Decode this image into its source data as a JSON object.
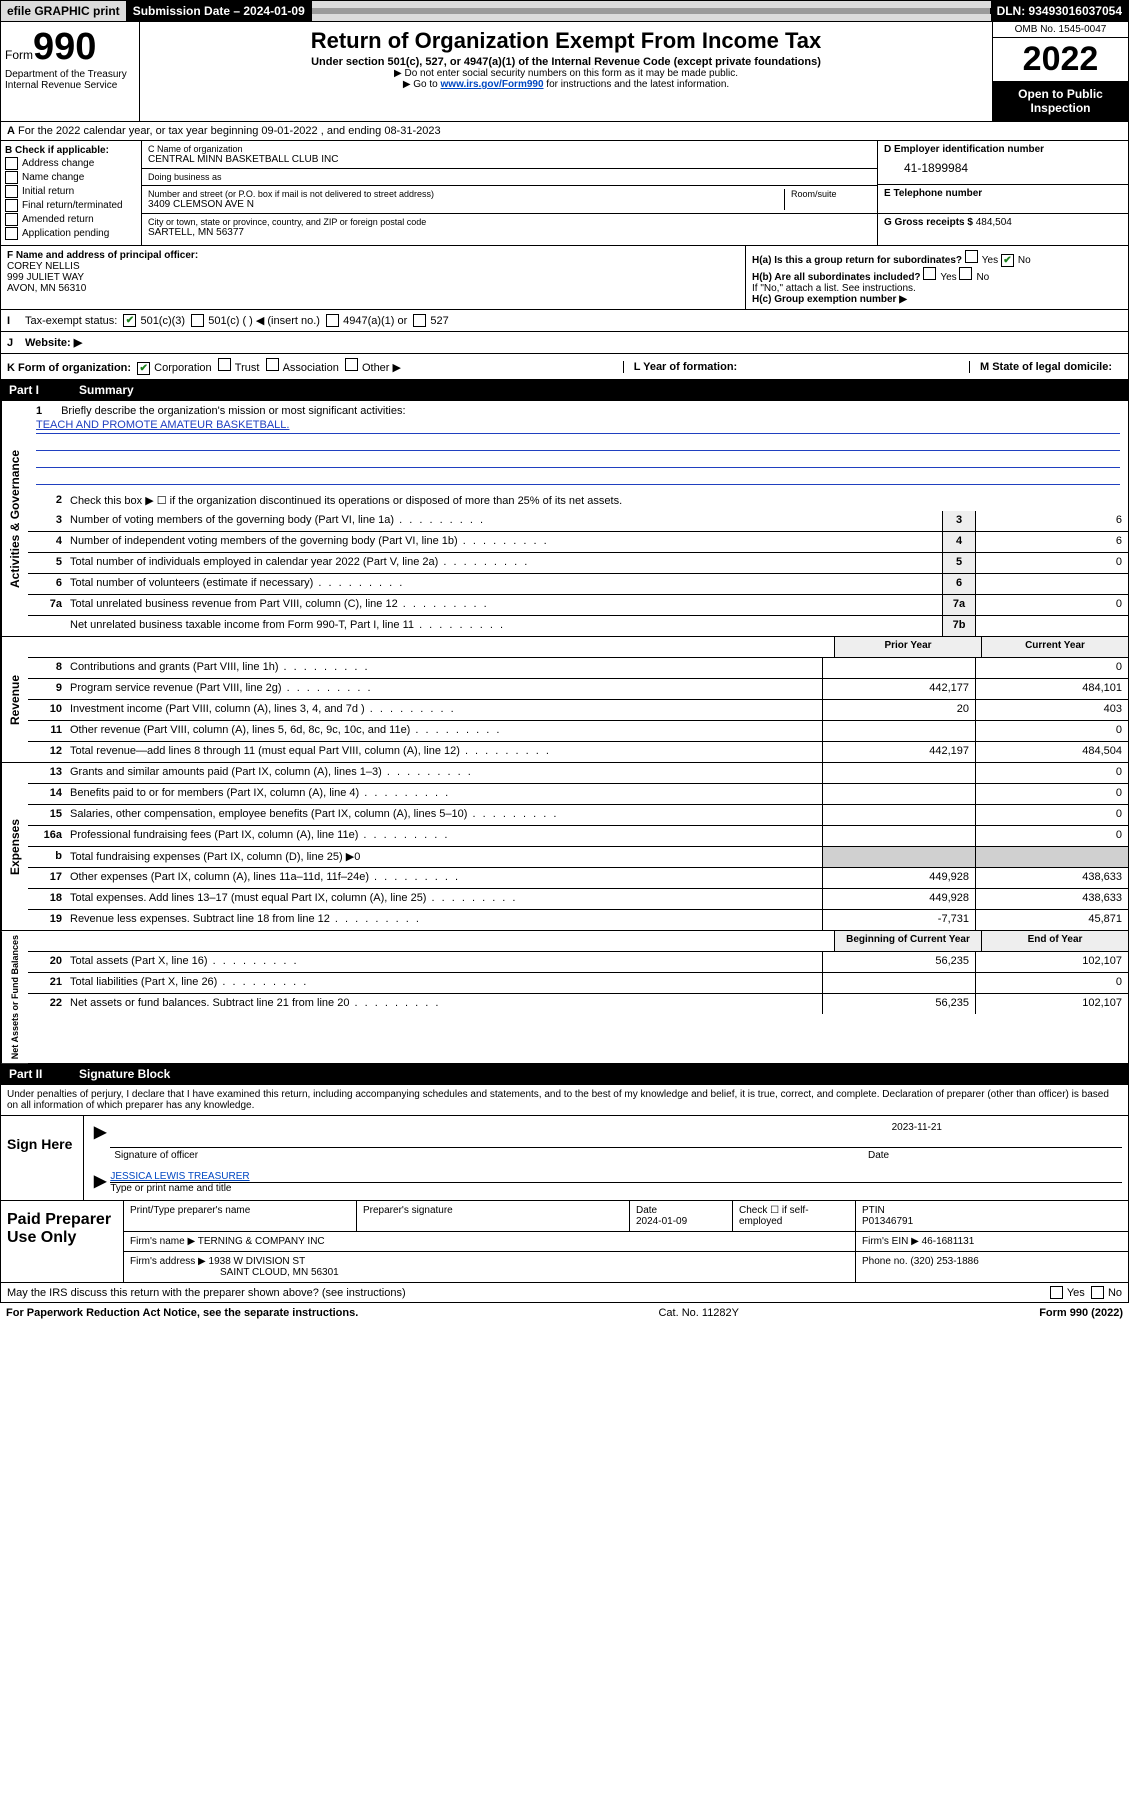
{
  "topbar": {
    "efile": "efile GRAPHIC print",
    "sub_label": "Submission Date – 2024-01-09",
    "dln": "DLN: 93493016037054"
  },
  "header": {
    "form_word": "Form",
    "form_num": "990",
    "dept": "Department of the Treasury Internal Revenue Service",
    "title": "Return of Organization Exempt From Income Tax",
    "sub1": "Under section 501(c), 527, or 4947(a)(1) of the Internal Revenue Code (except private foundations)",
    "sub2": "▶ Do not enter social security numbers on this form as it may be made public.",
    "sub3_pre": "▶ Go to ",
    "sub3_link": "www.irs.gov/Form990",
    "sub3_post": " for instructions and the latest information.",
    "omb": "OMB No. 1545-0047",
    "year": "2022",
    "open": "Open to Public Inspection"
  },
  "A": {
    "text": "For the 2022 calendar year, or tax year beginning 09-01-2022   , and ending 08-31-2023",
    "label": "A"
  },
  "B": {
    "label": "B Check if applicable:",
    "opts": [
      "Address change",
      "Name change",
      "Initial return",
      "Final return/terminated",
      "Amended return",
      "Application pending"
    ]
  },
  "C": {
    "name_label": "C Name of organization",
    "name": "CENTRAL MINN BASKETBALL CLUB INC",
    "dba_label": "Doing business as",
    "dba": "",
    "addr_label": "Number and street (or P.O. box if mail is not delivered to street address)",
    "room_label": "Room/suite",
    "addr": "3409 CLEMSON AVE N",
    "city_label": "City or town, state or province, country, and ZIP or foreign postal code",
    "city": "SARTELL, MN  56377"
  },
  "D": {
    "label": "D Employer identification number",
    "ein": "41-1899984"
  },
  "E": {
    "label": "E Telephone number",
    "val": ""
  },
  "G": {
    "label": "G Gross receipts $",
    "val": "484,504"
  },
  "F": {
    "label": "F Name and address of principal officer:",
    "name": "COREY NELLIS",
    "addr1": "999 JULIET WAY",
    "addr2": "AVON, MN  56310"
  },
  "H": {
    "a": "H(a)  Is this a group return for subordinates?",
    "b": "H(b)  Are all subordinates included?",
    "b_note": "If \"No,\" attach a list. See instructions.",
    "c": "H(c)  Group exemption number ▶",
    "yes": "Yes",
    "no": "No"
  },
  "I": {
    "label": "Tax-exempt status:",
    "opts": [
      "501(c)(3)",
      "501(c) (  ) ◀ (insert no.)",
      "4947(a)(1) or",
      "527"
    ]
  },
  "J": {
    "label": "Website: ▶",
    "val": ""
  },
  "K": {
    "label": "K Form of organization:",
    "opts": [
      "Corporation",
      "Trust",
      "Association",
      "Other ▶"
    ],
    "L": "L Year of formation:",
    "Lval": "",
    "M": "M State of legal domicile:",
    "Mval": ""
  },
  "partI": {
    "label": "Part I",
    "title": "Summary"
  },
  "summary": {
    "gov_label": "Activities & Governance",
    "rev_label": "Revenue",
    "exp_label": "Expenses",
    "net_label": "Net Assets or Fund Balances",
    "line1": "Briefly describe the organization's mission or most significant activities:",
    "mission": "TEACH AND PROMOTE AMATEUR BASKETBALL.",
    "line2": "Check this box ▶ ☐  if the organization discontinued its operations or disposed of more than 25% of its net assets.",
    "lines": [
      {
        "n": "3",
        "d": "Number of voting members of the governing body (Part VI, line 1a)",
        "box": "3",
        "v": "6"
      },
      {
        "n": "4",
        "d": "Number of independent voting members of the governing body (Part VI, line 1b)",
        "box": "4",
        "v": "6"
      },
      {
        "n": "5",
        "d": "Total number of individuals employed in calendar year 2022 (Part V, line 2a)",
        "box": "5",
        "v": "0"
      },
      {
        "n": "6",
        "d": "Total number of volunteers (estimate if necessary)",
        "box": "6",
        "v": ""
      },
      {
        "n": "7a",
        "d": "Total unrelated business revenue from Part VIII, column (C), line 12",
        "box": "7a",
        "v": "0"
      },
      {
        "n": "",
        "d": "Net unrelated business taxable income from Form 990-T, Part I, line 11",
        "box": "7b",
        "v": ""
      }
    ],
    "col_prior": "Prior Year",
    "col_current": "Current Year",
    "rev": [
      {
        "n": "8",
        "d": "Contributions and grants (Part VIII, line 1h)",
        "p": "",
        "c": "0"
      },
      {
        "n": "9",
        "d": "Program service revenue (Part VIII, line 2g)",
        "p": "442,177",
        "c": "484,101"
      },
      {
        "n": "10",
        "d": "Investment income (Part VIII, column (A), lines 3, 4, and 7d )",
        "p": "20",
        "c": "403"
      },
      {
        "n": "11",
        "d": "Other revenue (Part VIII, column (A), lines 5, 6d, 8c, 9c, 10c, and 11e)",
        "p": "",
        "c": "0"
      },
      {
        "n": "12",
        "d": "Total revenue—add lines 8 through 11 (must equal Part VIII, column (A), line 12)",
        "p": "442,197",
        "c": "484,504"
      }
    ],
    "exp": [
      {
        "n": "13",
        "d": "Grants and similar amounts paid (Part IX, column (A), lines 1–3)",
        "p": "",
        "c": "0"
      },
      {
        "n": "14",
        "d": "Benefits paid to or for members (Part IX, column (A), line 4)",
        "p": "",
        "c": "0"
      },
      {
        "n": "15",
        "d": "Salaries, other compensation, employee benefits (Part IX, column (A), lines 5–10)",
        "p": "",
        "c": "0"
      },
      {
        "n": "16a",
        "d": "Professional fundraising fees (Part IX, column (A), line 11e)",
        "p": "",
        "c": "0"
      },
      {
        "n": "b",
        "d": "Total fundraising expenses (Part IX, column (D), line 25) ▶0",
        "p": "GREY",
        "c": "GREY"
      },
      {
        "n": "17",
        "d": "Other expenses (Part IX, column (A), lines 11a–11d, 11f–24e)",
        "p": "449,928",
        "c": "438,633"
      },
      {
        "n": "18",
        "d": "Total expenses. Add lines 13–17 (must equal Part IX, column (A), line 25)",
        "p": "449,928",
        "c": "438,633"
      },
      {
        "n": "19",
        "d": "Revenue less expenses. Subtract line 18 from line 12",
        "p": "-7,731",
        "c": "45,871"
      }
    ],
    "col_begin": "Beginning of Current Year",
    "col_end": "End of Year",
    "net": [
      {
        "n": "20",
        "d": "Total assets (Part X, line 16)",
        "p": "56,235",
        "c": "102,107"
      },
      {
        "n": "21",
        "d": "Total liabilities (Part X, line 26)",
        "p": "",
        "c": "0"
      },
      {
        "n": "22",
        "d": "Net assets or fund balances. Subtract line 21 from line 20",
        "p": "56,235",
        "c": "102,107"
      }
    ]
  },
  "partII": {
    "label": "Part II",
    "title": "Signature Block"
  },
  "penalties": "Under penalties of perjury, I declare that I have examined this return, including accompanying schedules and statements, and to the best of my knowledge and belief, it is true, correct, and complete. Declaration of preparer (other than officer) is based on all information of which preparer has any knowledge.",
  "sign": {
    "label": "Sign Here",
    "sig_officer": "Signature of officer",
    "date": "2023-11-21",
    "date_label": "Date",
    "name": "JESSICA LEWIS TREASURER",
    "name_label": "Type or print name and title"
  },
  "paid": {
    "label": "Paid Preparer Use Only",
    "h_name": "Print/Type preparer's name",
    "h_sig": "Preparer's signature",
    "h_date": "Date",
    "date": "2024-01-09",
    "check": "Check ☐ if self-employed",
    "ptin_label": "PTIN",
    "ptin": "P01346791",
    "firm_name_label": "Firm's name    ▶",
    "firm_name": "TERNING & COMPANY INC",
    "firm_ein_label": "Firm's EIN ▶",
    "firm_ein": "46-1681131",
    "firm_addr_label": "Firm's address ▶",
    "firm_addr1": "1938 W DIVISION ST",
    "firm_addr2": "SAINT CLOUD, MN  56301",
    "phone_label": "Phone no.",
    "phone": "(320) 253-1886"
  },
  "discuss": {
    "text": "May the IRS discuss this return with the preparer shown above? (see instructions)",
    "yes": "Yes",
    "no": "No"
  },
  "footer": {
    "left": "For Paperwork Reduction Act Notice, see the separate instructions.",
    "mid": "Cat. No. 11282Y",
    "right": "Form 990 (2022)"
  }
}
